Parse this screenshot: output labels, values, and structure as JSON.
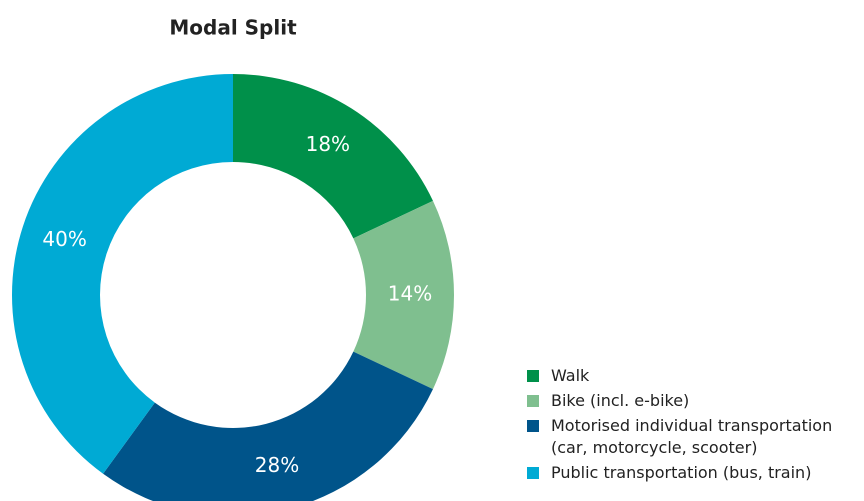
{
  "chart_data": {
    "type": "donut",
    "title": "Modal Split",
    "categories": [
      "Walk",
      "Bike (incl. e-bike)",
      "Motorised individual transportation\n(car, motorcycle, scooter)",
      "Public transportation (bus, train)"
    ],
    "values": [
      18,
      14,
      28,
      40
    ],
    "value_labels": [
      "18%",
      "14%",
      "28%",
      "40%"
    ],
    "colors": [
      "#00904a",
      "#7fbf8f",
      "#00548a",
      "#00aad4"
    ],
    "legend": "bottom-right"
  }
}
